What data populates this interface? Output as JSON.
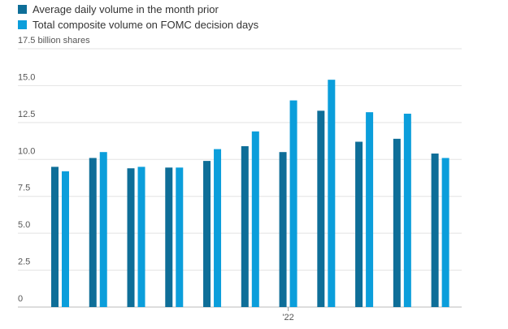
{
  "chart_data": {
    "type": "bar",
    "categories": [
      null,
      null,
      null,
      null,
      null,
      null,
      "'22",
      null,
      null,
      null,
      null
    ],
    "series": [
      {
        "name": "Average daily volume in the month prior",
        "color": "#0e6e98",
        "values": [
          9.5,
          10.1,
          9.4,
          9.45,
          9.9,
          10.9,
          10.5,
          13.3,
          11.2,
          11.4,
          10.4
        ]
      },
      {
        "name": "Total composite volume on FOMC decision days",
        "color": "#0b9edb",
        "values": [
          9.2,
          10.5,
          9.5,
          9.45,
          10.7,
          11.9,
          14.0,
          15.4,
          13.2,
          13.1,
          10.1
        ]
      }
    ],
    "ylim": [
      0,
      17.5
    ],
    "yticks": [
      0,
      2.5,
      {
        "value": 5,
        "label": "5.0"
      },
      7.5,
      {
        "value": 10,
        "label": "10.0"
      },
      12.5,
      {
        "value": 15,
        "label": "15.0"
      },
      {
        "value": 17.5,
        "label": "17.5 billion shares"
      }
    ],
    "grid": true
  }
}
